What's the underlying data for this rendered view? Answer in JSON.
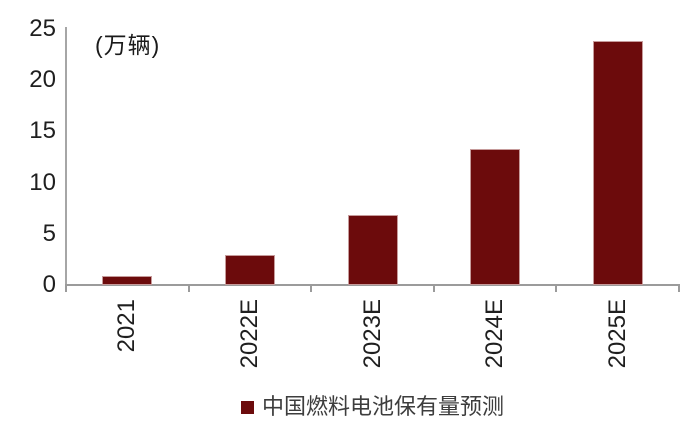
{
  "chart_data": {
    "type": "bar",
    "title": "",
    "unit_label": "(万辆)",
    "xlabel": "",
    "ylabel": "",
    "categories": [
      "2021",
      "2022E",
      "2023E",
      "2024E",
      "2025E"
    ],
    "values": [
      0.9,
      2.9,
      6.8,
      13.3,
      23.8
    ],
    "ylim": [
      0,
      25
    ],
    "yticks": [
      0,
      5,
      10,
      15,
      20,
      25
    ],
    "grid": false,
    "legend_position": "bottom",
    "legend": {
      "label": "中国燃料电池保有量预测",
      "marker_color": "#6c0b0c"
    },
    "colors": {
      "bar": "#6c0b0c",
      "axis": "#9b9b9b",
      "tick_text": "#1f1f1f",
      "legend_text": "#3d3d3d"
    }
  }
}
